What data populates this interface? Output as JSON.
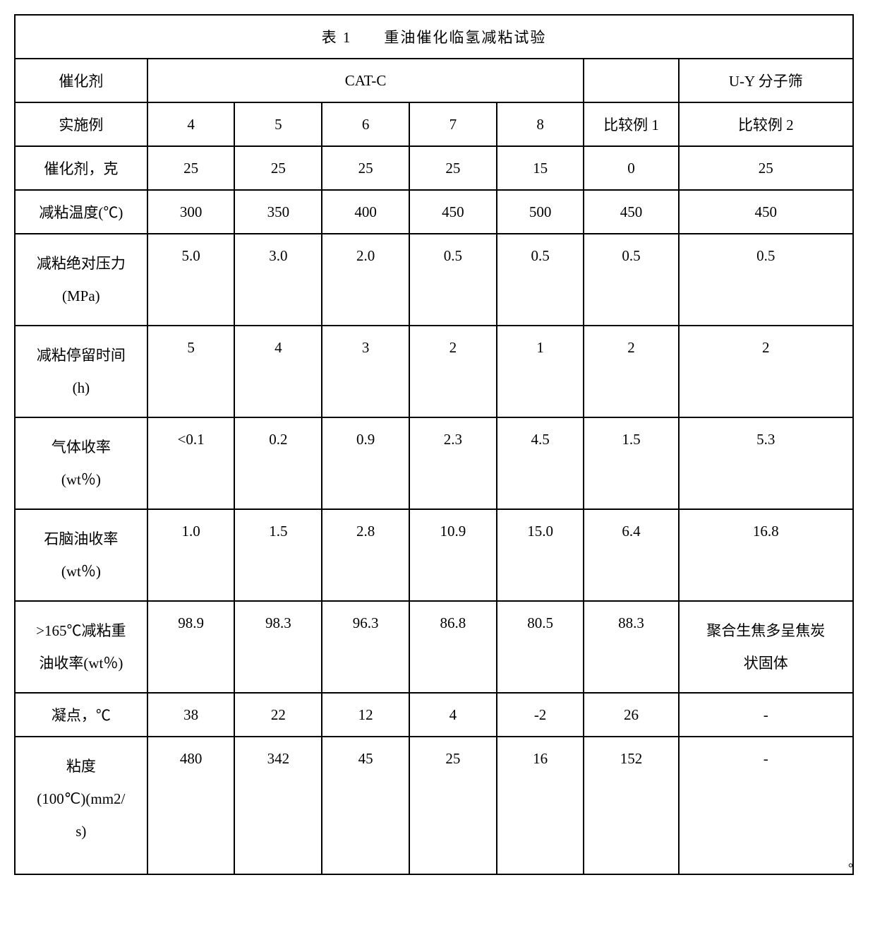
{
  "table": {
    "title": "表 1　　重油催化临氢减粘试验",
    "header_row1": {
      "label": "催化剂",
      "catc": "CAT-C",
      "empty": "",
      "uy": "U-Y 分子筛"
    },
    "header_row2": {
      "label": "实施例",
      "c4": "4",
      "c5": "5",
      "c6": "6",
      "c7": "7",
      "c8": "8",
      "cmp1": "比较例 1",
      "cmp2": "比较例 2"
    },
    "rows": [
      {
        "label": "催化剂，克",
        "c4": "25",
        "c5": "25",
        "c6": "25",
        "c7": "25",
        "c8": "15",
        "cmp1": "0",
        "cmp2": "25",
        "tall": false
      },
      {
        "label": "减粘温度(℃)",
        "c4": "300",
        "c5": "350",
        "c6": "400",
        "c7": "450",
        "c8": "500",
        "cmp1": "450",
        "cmp2": "450",
        "tall": false
      },
      {
        "label": "减粘绝对压力\n(MPa)",
        "c4": "5.0",
        "c5": "3.0",
        "c6": "2.0",
        "c7": "0.5",
        "c8": "0.5",
        "cmp1": "0.5",
        "cmp2": "0.5",
        "tall": true
      },
      {
        "label": "减粘停留时间\n(h)",
        "c4": "5",
        "c5": "4",
        "c6": "3",
        "c7": "2",
        "c8": "1",
        "cmp1": "2",
        "cmp2": "2",
        "tall": true
      },
      {
        "label": "气体收率\n(wt％)",
        "c4": "<0.1",
        "c5": "0.2",
        "c6": "0.9",
        "c7": "2.3",
        "c8": "4.5",
        "cmp1": "1.5",
        "cmp2": "5.3",
        "tall": true
      },
      {
        "label": "石脑油收率\n(wt％)",
        "c4": "1.0",
        "c5": "1.5",
        "c6": "2.8",
        "c7": "10.9",
        "c8": "15.0",
        "cmp1": "6.4",
        "cmp2": "16.8",
        "tall": true
      },
      {
        "label": ">165℃减粘重\n油收率(wt％)",
        "c4": "98.9",
        "c5": "98.3",
        "c6": "96.3",
        "c7": "86.8",
        "c8": "80.5",
        "cmp1": "88.3",
        "cmp2": "聚合生焦多呈焦炭\n状固体",
        "tall": true
      },
      {
        "label": "凝点，℃",
        "c4": "38",
        "c5": "22",
        "c6": "12",
        "c7": "4",
        "c8": "-2",
        "cmp1": "26",
        "cmp2": "-",
        "tall": false
      },
      {
        "label": "粘度\n(100℃)(mm2/\ns)",
        "c4": "480",
        "c5": "342",
        "c6": "45",
        "c7": "25",
        "c8": "16",
        "cmp1": "152",
        "cmp2": "-",
        "tall3": true
      }
    ],
    "footer_mark": "。"
  },
  "style": {
    "border_color": "#000000",
    "background_color": "#ffffff",
    "font_family": "SimSun",
    "base_fontsize": 21,
    "col_widths": {
      "label": 182,
      "data": 120,
      "compare1": 130,
      "last": 240
    }
  }
}
